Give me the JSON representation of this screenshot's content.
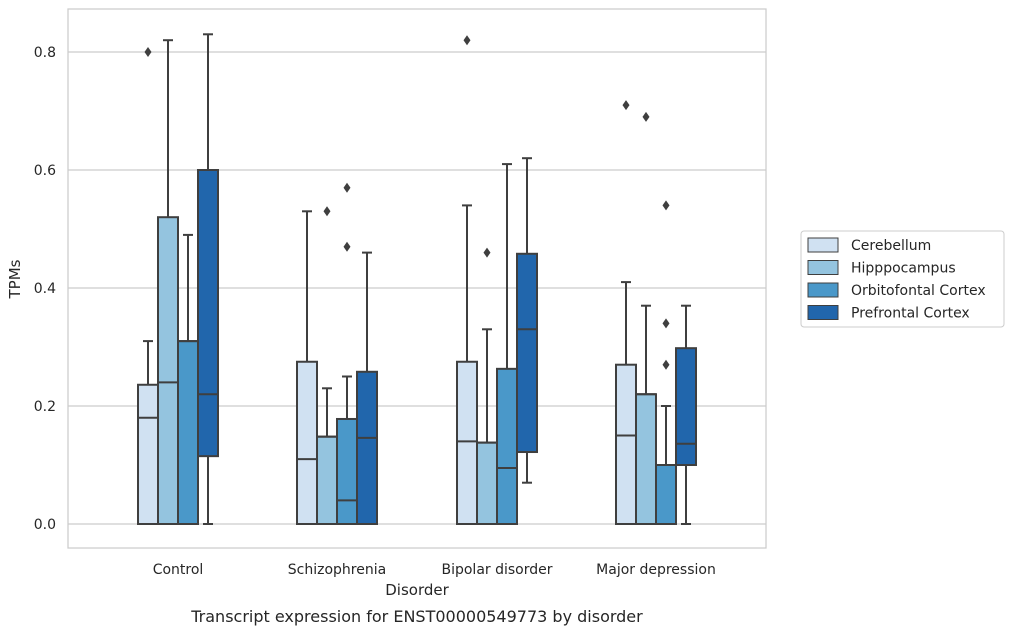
{
  "chart_data": {
    "type": "box",
    "caption": "Transcript expression for ENST00000549773 by disorder",
    "xlabel": "Disorder",
    "ylabel": "TPMs",
    "ylim": [
      -0.04,
      0.87
    ],
    "yticks": [
      "0.0",
      "0.2",
      "0.4",
      "0.6",
      "0.8"
    ],
    "ytick_values": [
      0.0,
      0.2,
      0.4,
      0.6,
      0.8
    ],
    "grid": true,
    "legend_position": "right",
    "categories": [
      "Control",
      "Schizophrenia",
      "Bipolar disorder",
      "Major depression"
    ],
    "series": [
      {
        "name": "Cerebellum",
        "color": "#d0e1f2",
        "boxes": [
          {
            "whisker_low": 0.0,
            "q1": 0.0,
            "median": 0.18,
            "q3": 0.236,
            "whisker_high": 0.31,
            "outliers": [
              0.8
            ]
          },
          {
            "whisker_low": 0.0,
            "q1": 0.0,
            "median": 0.11,
            "q3": 0.275,
            "whisker_high": 0.53,
            "outliers": []
          },
          {
            "whisker_low": 0.0,
            "q1": 0.0,
            "median": 0.14,
            "q3": 0.275,
            "whisker_high": 0.54,
            "outliers": [
              0.82
            ]
          },
          {
            "whisker_low": 0.0,
            "q1": 0.0,
            "median": 0.15,
            "q3": 0.27,
            "whisker_high": 0.41,
            "outliers": [
              0.71
            ]
          }
        ]
      },
      {
        "name": "Hipppocampus",
        "color": "#94c4df",
        "boxes": [
          {
            "whisker_low": 0.0,
            "q1": 0.0,
            "median": 0.24,
            "q3": 0.52,
            "whisker_high": 0.82,
            "outliers": []
          },
          {
            "whisker_low": 0.0,
            "q1": 0.0,
            "median": 0.148,
            "q3": 0.148,
            "whisker_high": 0.23,
            "outliers": [
              0.53
            ]
          },
          {
            "whisker_low": 0.0,
            "q1": 0.0,
            "median": 0.138,
            "q3": 0.138,
            "whisker_high": 0.33,
            "outliers": [
              0.46
            ]
          },
          {
            "whisker_low": 0.0,
            "q1": 0.0,
            "median": 0.22,
            "q3": 0.22,
            "whisker_high": 0.37,
            "outliers": [
              0.69
            ]
          }
        ]
      },
      {
        "name": "Orbitofontal Cortex",
        "color": "#4a98c9",
        "boxes": [
          {
            "whisker_low": 0.0,
            "q1": 0.0,
            "median": 0.31,
            "q3": 0.31,
            "whisker_high": 0.49,
            "outliers": []
          },
          {
            "whisker_low": 0.0,
            "q1": 0.0,
            "median": 0.04,
            "q3": 0.178,
            "whisker_high": 0.25,
            "outliers": [
              0.47,
              0.57
            ]
          },
          {
            "whisker_low": 0.0,
            "q1": 0.0,
            "median": 0.095,
            "q3": 0.263,
            "whisker_high": 0.61,
            "outliers": []
          },
          {
            "whisker_low": 0.0,
            "q1": 0.0,
            "median": 0.1,
            "q3": 0.1,
            "whisker_high": 0.2,
            "outliers": [
              0.27,
              0.34,
              0.54
            ]
          }
        ]
      },
      {
        "name": "Prefrontal Cortex",
        "color": "#2166ac",
        "boxes": [
          {
            "whisker_low": 0.0,
            "q1": 0.115,
            "median": 0.22,
            "q3": 0.6,
            "whisker_high": 0.83,
            "outliers": []
          },
          {
            "whisker_low": 0.0,
            "q1": 0.0,
            "median": 0.146,
            "q3": 0.258,
            "whisker_high": 0.46,
            "outliers": []
          },
          {
            "whisker_low": 0.07,
            "q1": 0.122,
            "median": 0.33,
            "q3": 0.458,
            "whisker_high": 0.62,
            "outliers": []
          },
          {
            "whisker_low": 0.0,
            "q1": 0.1,
            "median": 0.136,
            "q3": 0.298,
            "whisker_high": 0.37,
            "outliers": []
          }
        ]
      }
    ]
  }
}
